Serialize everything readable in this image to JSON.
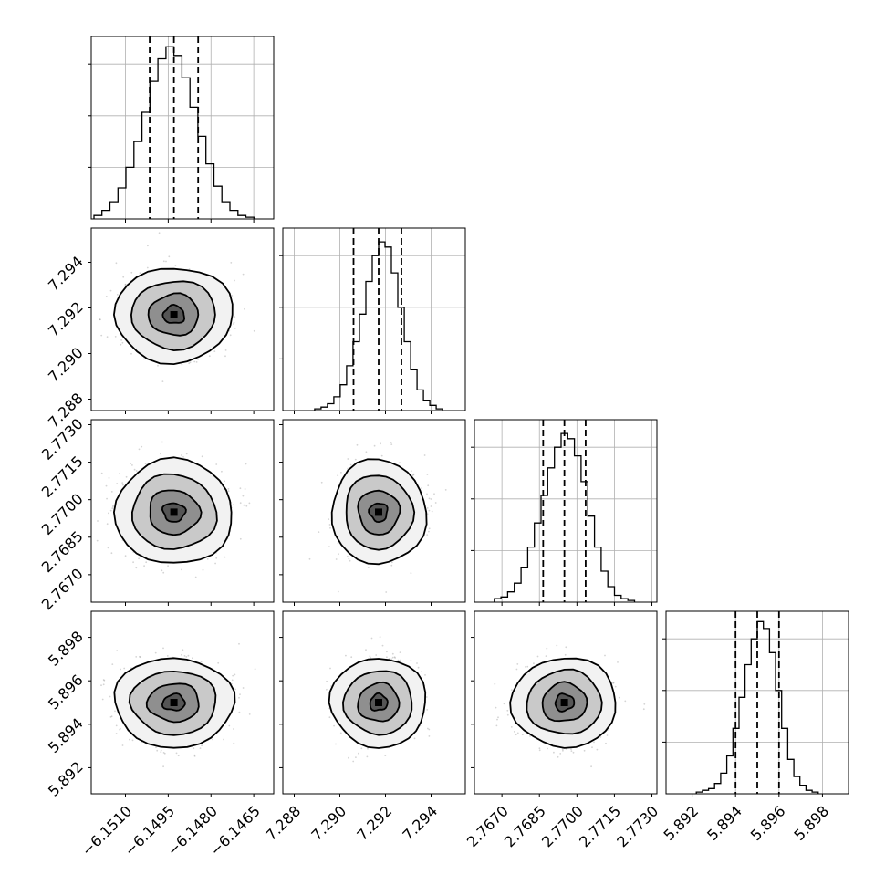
{
  "chart_data": {
    "type": "corner",
    "parameters": [
      {
        "mean": -6.1493,
        "std": 0.00085,
        "range": [
          -6.1522,
          -6.1458
        ],
        "ticks": [
          -6.151,
          -6.1495,
          -6.148,
          -6.1465
        ],
        "tick_labels": [
          "−6.1510",
          "−6.1495",
          "−6.1480",
          "−6.1465"
        ],
        "quantiles": [
          -6.15015,
          -6.1493,
          -6.14845
        ],
        "hist": [
          0.02,
          0.05,
          0.1,
          0.18,
          0.3,
          0.45,
          0.62,
          0.8,
          0.93,
          1.0,
          0.95,
          0.82,
          0.65,
          0.48,
          0.32,
          0.19,
          0.1,
          0.05,
          0.02,
          0.01
        ]
      },
      {
        "mean": 7.2917,
        "std": 0.00085,
        "range": [
          7.2875,
          7.2955
        ],
        "ticks": [
          7.288,
          7.29,
          7.292,
          7.294
        ],
        "tick_labels": [
          "7.288",
          "7.290",
          "7.292",
          "7.294"
        ],
        "quantiles": [
          7.2906,
          7.2917,
          7.2927
        ],
        "hist": [
          0.01,
          0.02,
          0.04,
          0.08,
          0.15,
          0.26,
          0.4,
          0.56,
          0.75,
          0.9,
          0.98,
          0.95,
          0.8,
          0.6,
          0.4,
          0.24,
          0.12,
          0.06,
          0.03,
          0.01
        ]
      },
      {
        "mean": 2.7695,
        "std": 0.00085,
        "range": [
          2.7659,
          2.7732
        ],
        "ticks": [
          2.767,
          2.7685,
          2.77,
          2.7715,
          2.773
        ],
        "tick_labels": [
          "2.7670",
          "2.7685",
          "2.7700",
          "2.7715",
          "2.7730"
        ],
        "quantiles": [
          2.76865,
          2.7695,
          2.77035
        ],
        "hist": [
          0.02,
          0.03,
          0.06,
          0.11,
          0.2,
          0.32,
          0.46,
          0.62,
          0.78,
          0.9,
          0.98,
          0.95,
          0.85,
          0.7,
          0.5,
          0.32,
          0.18,
          0.09,
          0.04,
          0.02,
          0.01
        ]
      },
      {
        "mean": 5.895,
        "std": 0.00085,
        "range": [
          5.8908,
          5.8992
        ],
        "ticks": [
          5.892,
          5.894,
          5.896,
          5.898
        ],
        "tick_labels": [
          "5.892",
          "5.894",
          "5.896",
          "5.898"
        ],
        "quantiles": [
          5.894,
          5.895,
          5.896
        ],
        "hist": [
          0.01,
          0.02,
          0.03,
          0.06,
          0.12,
          0.22,
          0.38,
          0.56,
          0.75,
          0.9,
          1.0,
          0.96,
          0.82,
          0.6,
          0.38,
          0.2,
          0.1,
          0.05,
          0.02,
          0.01
        ]
      }
    ]
  }
}
